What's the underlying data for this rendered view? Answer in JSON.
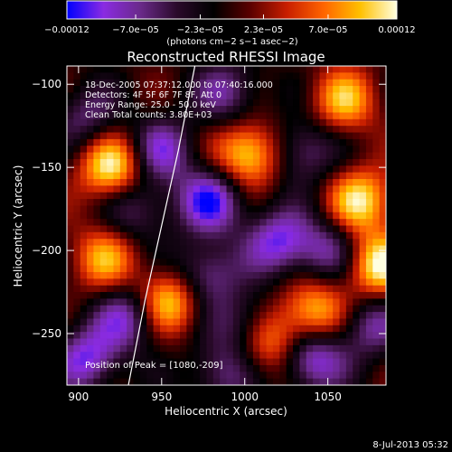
{
  "chart_data": {
    "type": "heatmap",
    "title": "Reconstructed RHESSI Image",
    "xlabel": "Heliocentric X (arcsec)",
    "ylabel": "Heliocentric Y (arcsec)",
    "xlim": [
      893,
      1085
    ],
    "ylim": [
      -281,
      -89
    ],
    "xticks": [
      900,
      950,
      1000,
      1050
    ],
    "yticks": [
      -100,
      -150,
      -200,
      -250
    ],
    "xtick_labels": [
      "900",
      "950",
      "1000",
      "1050"
    ],
    "ytick_labels": [
      "−100",
      "−150",
      "−200",
      "−250"
    ],
    "colorbar": {
      "range": [
        -0.00012,
        0.00012
      ],
      "tick_values": [
        -0.00012,
        -7e-05,
        -2.3e-05,
        2.3e-05,
        7e-05,
        0.00012
      ],
      "tick_labels": [
        "−0.00012",
        "−7.0e−05",
        "−2.3e−05",
        "2.3e−05",
        "7.0e−05",
        "0.00012"
      ],
      "unit_label": "(photons cm−2 s−1 asec−2)",
      "colors": [
        "#0000ff",
        "#8a2be2",
        "#6a2a8a",
        "#2a0a2a",
        "#000000",
        "#5a0000",
        "#c81e00",
        "#ff6400",
        "#ffc000",
        "#ffffe0"
      ]
    },
    "annotations": [
      "18-Dec-2005 07:37:12.000 to 07:40:16.000",
      "Detectors: 4F 5F 6F 7F 8F, Att 0",
      "Energy Range: 25.0 - 50.0 keV",
      "Clean    Total counts: 3.80E+03"
    ],
    "peak_label": "Position of Peak = [1080,-209]",
    "peak": [
      1080,
      -209
    ],
    "limb_curve": [
      [
        970,
        -89
      ],
      [
        960,
        -140
      ],
      [
        950,
        -185
      ],
      [
        940,
        -230
      ],
      [
        930,
        -281
      ]
    ],
    "blobs": [
      [
        1002,
        -142,
        1.0
      ],
      [
        920,
        -150,
        1.0
      ],
      [
        1070,
        -170,
        0.9
      ],
      [
        1080,
        -209,
        1.0
      ],
      [
        955,
        -230,
        0.95
      ],
      [
        1042,
        -237,
        0.85
      ],
      [
        1015,
        -255,
        0.8
      ],
      [
        915,
        -205,
        0.7
      ],
      [
        1060,
        -110,
        0.75
      ],
      [
        905,
        -120,
        -0.5
      ],
      [
        980,
        -170,
        -0.9
      ],
      [
        950,
        -140,
        -0.7
      ],
      [
        1020,
        -195,
        -0.8
      ],
      [
        975,
        -215,
        -0.7
      ],
      [
        1040,
        -265,
        -0.9
      ],
      [
        905,
        -265,
        -0.8
      ],
      [
        930,
        -240,
        -0.7
      ],
      [
        1000,
        -245,
        -0.6
      ],
      [
        1075,
        -245,
        -0.6
      ],
      [
        1050,
        -200,
        -0.6
      ],
      [
        935,
        -175,
        -0.5
      ],
      [
        990,
        -105,
        -0.6
      ],
      [
        1035,
        -140,
        -0.6
      ],
      [
        985,
        -275,
        -0.5
      ]
    ]
  },
  "timestamp": "8-Jul-2013 05:32"
}
